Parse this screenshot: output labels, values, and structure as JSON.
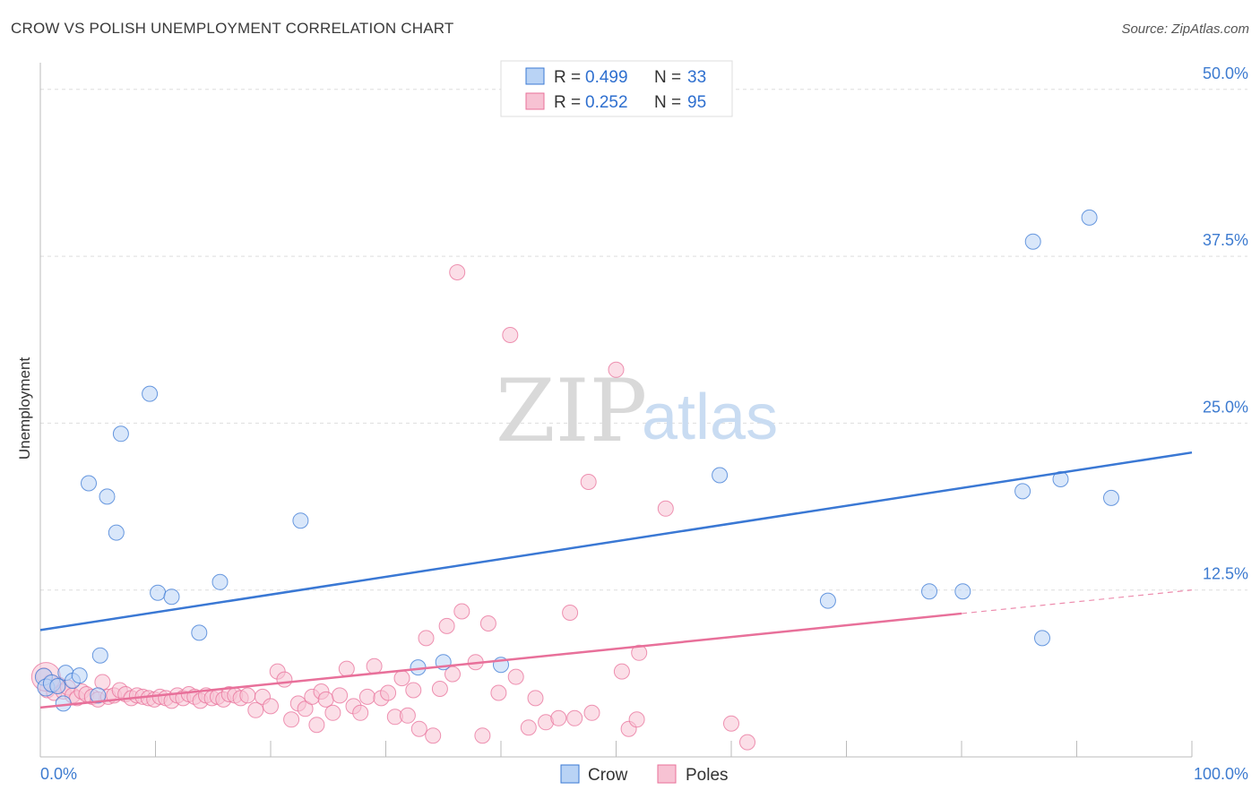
{
  "header": {
    "title": "CROW VS POLISH UNEMPLOYMENT CORRELATION CHART",
    "source": "Source: ZipAtlas.com"
  },
  "watermark": {
    "zip": "ZIP",
    "atlas": "atlas"
  },
  "colors": {
    "crow": "#3a78d4",
    "crow_fill": "#b9d3f5",
    "poles": "#e8709a",
    "poles_fill": "#f7c2d3",
    "axis_tick": "#3d7bd0",
    "grid": "#dddddd"
  },
  "legend": {
    "rows": [
      {
        "r_label": "R =",
        "r_value": "0.499",
        "n_label": "N =",
        "n_value": "33"
      },
      {
        "r_label": "R =",
        "r_value": "0.252",
        "n_label": "N =",
        "n_value": "95"
      }
    ]
  },
  "chart_data": {
    "type": "scatter",
    "title": "CROW VS POLISH UNEMPLOYMENT CORRELATION CHART",
    "xlabel": "",
    "ylabel": "Unemployment",
    "xlim": [
      0,
      100
    ],
    "ylim": [
      0,
      52
    ],
    "x_tick_labels": [
      "0.0%",
      "100.0%"
    ],
    "y_ticks": [
      {
        "value": 12.5,
        "label": "12.5%"
      },
      {
        "value": 25,
        "label": "25.0%"
      },
      {
        "value": 37.5,
        "label": "37.5%"
      },
      {
        "value": 50,
        "label": "50.0%"
      }
    ],
    "grid": true,
    "legend_position": "top-center",
    "series": [
      {
        "name": "Crow",
        "r": 0.499,
        "n": 33,
        "trend": {
          "x0": 0,
          "y0": 9.5,
          "x1": 100,
          "y1": 22.8,
          "dashed_from": null
        },
        "points": [
          [
            0.3,
            6.0
          ],
          [
            0.5,
            5.2
          ],
          [
            1.0,
            5.5
          ],
          [
            1.5,
            5.3
          ],
          [
            2.0,
            4.0
          ],
          [
            2.2,
            6.3
          ],
          [
            2.8,
            5.7
          ],
          [
            3.4,
            6.1
          ],
          [
            4.2,
            20.5
          ],
          [
            5.0,
            4.6
          ],
          [
            5.2,
            7.6
          ],
          [
            5.8,
            19.5
          ],
          [
            6.6,
            16.8
          ],
          [
            7.0,
            24.2
          ],
          [
            9.5,
            27.2
          ],
          [
            10.2,
            12.3
          ],
          [
            11.4,
            12.0
          ],
          [
            13.8,
            9.3
          ],
          [
            15.6,
            13.1
          ],
          [
            22.6,
            17.7
          ],
          [
            32.8,
            6.7
          ],
          [
            35.0,
            7.1
          ],
          [
            40.0,
            6.9
          ],
          [
            59.0,
            21.1
          ],
          [
            68.4,
            11.7
          ],
          [
            77.2,
            12.4
          ],
          [
            80.1,
            12.4
          ],
          [
            85.3,
            19.9
          ],
          [
            86.2,
            38.6
          ],
          [
            87.0,
            8.9
          ],
          [
            88.6,
            20.8
          ],
          [
            91.1,
            40.4
          ],
          [
            93.0,
            19.4
          ]
        ]
      },
      {
        "name": "Poles",
        "r": 0.252,
        "n": 95,
        "trend": {
          "x0": 0,
          "y0": 3.7,
          "x1": 100,
          "y1": 12.5,
          "dashed_from": 80
        },
        "points": [
          [
            0.3,
            6.1
          ],
          [
            0.6,
            5.0
          ],
          [
            0.9,
            5.6
          ],
          [
            1.2,
            4.8
          ],
          [
            1.6,
            5.4
          ],
          [
            2.0,
            4.9
          ],
          [
            2.4,
            5.2
          ],
          [
            2.8,
            4.6
          ],
          [
            3.2,
            4.4
          ],
          [
            3.6,
            4.9
          ],
          [
            4.0,
            4.7
          ],
          [
            4.5,
            4.5
          ],
          [
            5.0,
            4.3
          ],
          [
            5.4,
            5.6
          ],
          [
            5.9,
            4.5
          ],
          [
            6.4,
            4.6
          ],
          [
            6.9,
            5.0
          ],
          [
            7.4,
            4.7
          ],
          [
            7.9,
            4.4
          ],
          [
            8.4,
            4.6
          ],
          [
            8.9,
            4.5
          ],
          [
            9.4,
            4.4
          ],
          [
            9.9,
            4.3
          ],
          [
            10.4,
            4.5
          ],
          [
            10.9,
            4.4
          ],
          [
            11.4,
            4.2
          ],
          [
            11.9,
            4.6
          ],
          [
            12.4,
            4.4
          ],
          [
            12.9,
            4.7
          ],
          [
            13.4,
            4.5
          ],
          [
            13.9,
            4.2
          ],
          [
            14.4,
            4.6
          ],
          [
            14.9,
            4.4
          ],
          [
            15.4,
            4.5
          ],
          [
            15.9,
            4.3
          ],
          [
            16.4,
            4.7
          ],
          [
            16.9,
            4.6
          ],
          [
            17.4,
            4.4
          ],
          [
            18.0,
            4.6
          ],
          [
            18.7,
            3.5
          ],
          [
            19.3,
            4.5
          ],
          [
            20.0,
            3.8
          ],
          [
            20.6,
            6.4
          ],
          [
            21.2,
            5.8
          ],
          [
            21.8,
            2.8
          ],
          [
            22.4,
            4.0
          ],
          [
            23.0,
            3.6
          ],
          [
            23.6,
            4.5
          ],
          [
            24.0,
            2.4
          ],
          [
            24.4,
            4.9
          ],
          [
            24.8,
            4.3
          ],
          [
            25.4,
            3.3
          ],
          [
            26.0,
            4.6
          ],
          [
            26.6,
            6.6
          ],
          [
            27.2,
            3.8
          ],
          [
            27.8,
            3.3
          ],
          [
            28.4,
            4.5
          ],
          [
            29.0,
            6.8
          ],
          [
            29.6,
            4.4
          ],
          [
            30.2,
            4.8
          ],
          [
            30.8,
            3.0
          ],
          [
            31.4,
            5.9
          ],
          [
            31.9,
            3.1
          ],
          [
            32.4,
            5.0
          ],
          [
            32.9,
            2.1
          ],
          [
            33.5,
            8.9
          ],
          [
            34.1,
            1.6
          ],
          [
            34.7,
            5.1
          ],
          [
            35.3,
            9.8
          ],
          [
            35.8,
            6.2
          ],
          [
            36.2,
            36.3
          ],
          [
            36.6,
            10.9
          ],
          [
            37.8,
            7.1
          ],
          [
            38.4,
            1.6
          ],
          [
            38.9,
            10.0
          ],
          [
            39.8,
            4.8
          ],
          [
            40.8,
            31.6
          ],
          [
            41.3,
            6.0
          ],
          [
            42.4,
            2.2
          ],
          [
            43.0,
            4.4
          ],
          [
            43.9,
            2.6
          ],
          [
            45.0,
            2.9
          ],
          [
            46.0,
            10.8
          ],
          [
            46.4,
            2.9
          ],
          [
            47.6,
            20.6
          ],
          [
            47.9,
            3.3
          ],
          [
            50.0,
            29.0
          ],
          [
            50.5,
            6.4
          ],
          [
            51.1,
            2.1
          ],
          [
            51.8,
            2.8
          ],
          [
            52.0,
            7.8
          ],
          [
            54.3,
            18.6
          ],
          [
            60.0,
            2.5
          ],
          [
            61.4,
            1.1
          ],
          [
            0.5,
            6.0
          ]
        ]
      }
    ]
  }
}
